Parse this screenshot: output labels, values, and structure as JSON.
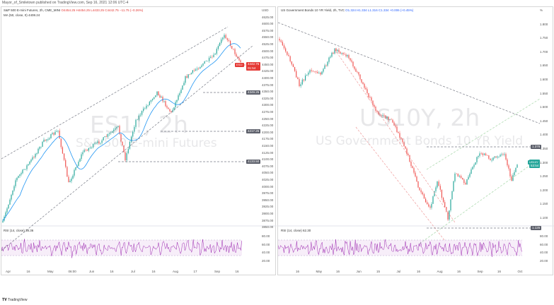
{
  "author_line": "Mayor_of_Smiletown published on TradingView.com, Sep 16, 2021 12:06 UTC-4",
  "footer_brand": "TradingView",
  "colors": {
    "up": "#26a69a",
    "down": "#ef5350",
    "ma": "#2196f3",
    "rsi": "#9c27b0",
    "dash": "#787b86"
  },
  "left": {
    "legend_main": "S&P 500 E-mini Futures, 2h, CME_MINI",
    "legend_ohlc": "O4454.25 H4454.25 L4433.25 C4442.75 −11.75 (−0.26%)",
    "legend_ma": "MA (50, close, 0) 4408.24",
    "watermark_symbol": "ES1!, 2h",
    "watermark_name": "S&P 500 E-mini Futures",
    "yaxis": [
      "USD",
      "4625.00",
      "4600.00",
      "4575.00",
      "4550.00",
      "4525.00",
      "4500.00",
      "4475.00",
      "4450.00",
      "4425.00",
      "4400.00",
      "4375.00",
      "4350.00",
      "4325.00",
      "4300.00",
      "4275.00",
      "4250.00",
      "4225.00",
      "4200.00",
      "4175.00",
      "4150.00",
      "4125.00",
      "4100.00",
      "4075.00",
      "4050.00",
      "4025.00",
      "4000.00",
      "3975.00",
      "3950.00",
      "3925.00",
      "3900.00",
      "3875.00",
      "3850.00"
    ],
    "price_tag": "4442.75",
    "price_tag_sub": "01:54",
    "symbol_tag": "ES1!",
    "level_tags": [
      "4349.25",
      "4217.25",
      "4133.50"
    ],
    "rsi_legend": "RSI (14, close) 38.36",
    "rsi_axis": [
      "80.00",
      "60.00",
      "40.00",
      "20.00"
    ],
    "xaxis": [
      "Apr",
      "16",
      "May",
      "06:00",
      "Jun",
      "16",
      "Jul",
      "16",
      "Aug",
      "17",
      "Sep",
      "16"
    ]
  },
  "right": {
    "legend_main": "US Government Bonds 10 YR Yield, 2h, TVC",
    "legend_ohlc": "O1.324 H1.334 L1.316 C1.334 +0.006 (+0.45%)",
    "watermark_symbol": "US10Y, 2h",
    "watermark_name": "US Government Bonds 10 YR Yield",
    "yaxis": [
      "%",
      "1.800",
      "1.750",
      "1.700",
      "1.650",
      "1.600",
      "1.550",
      "1.500",
      "1.450",
      "1.400",
      "1.350",
      "1.300",
      "1.250",
      "1.200",
      "1.150",
      "1.100"
    ],
    "price_tag": "1.334",
    "price_tag_sub": "53:54",
    "symbol_tag": "US10Y",
    "level_tags": [
      "1.378",
      "1.125"
    ],
    "rsi_legend": "RSI (14, close) 62.30",
    "rsi_axis": [
      "80.00",
      "60.00",
      "40.00",
      "20.00"
    ],
    "xaxis": [
      "16",
      "May",
      "16",
      "Jun",
      "15",
      "Jul",
      "16",
      "Aug",
      "16",
      "Sep",
      "16",
      "Oct"
    ]
  }
}
